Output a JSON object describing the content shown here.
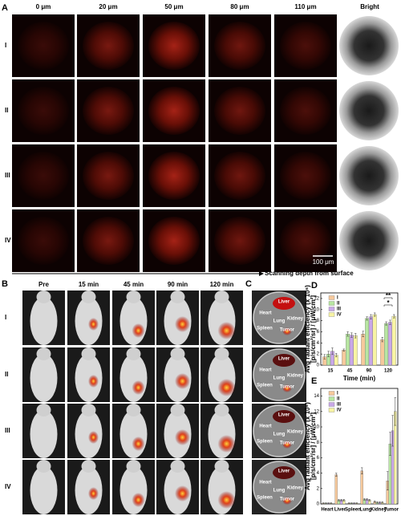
{
  "panel_a": {
    "label": "A",
    "columns": [
      "0 μm",
      "20 μm",
      "50 μm",
      "80 μm",
      "110 μm",
      "Bright"
    ],
    "rows": [
      "I",
      "II",
      "III",
      "IV"
    ],
    "scale_bar": "100 μm",
    "axis_note": "Scanning depth from surface"
  },
  "panel_b": {
    "label": "B",
    "columns": [
      "Pre",
      "15 min",
      "45 min",
      "90 min",
      "120 min"
    ],
    "rows": [
      "I",
      "II",
      "III",
      "IV"
    ]
  },
  "panel_c": {
    "label": "C",
    "dishes": [
      [
        "Liver",
        "Heart",
        "Lung",
        "Kidney",
        "Spleen",
        "Tumor"
      ],
      [
        "Liver",
        "Heart",
        "Lung",
        "Kidney",
        "Spleen",
        "Tumor"
      ],
      [
        "Liver",
        "Heart",
        "Lung",
        "Kidney",
        "Spleen",
        "Tumor"
      ],
      [
        "Liver",
        "Heart",
        "Lung",
        "Kidney",
        "Spleen",
        "Tumor"
      ]
    ]
  },
  "chart_data": [
    {
      "type": "bar",
      "panel_label": "D",
      "y_label": "Avg radiant efficiency (x 10⁶)",
      "y_label_2": "[p/s/cm²/sr] / [μW/cm²]",
      "x_label": "Time (min)",
      "categories": [
        "15",
        "45",
        "90",
        "120"
      ],
      "series": [
        {
          "name": "I",
          "color": "#f6c99c",
          "values": [
            1.5,
            2.7,
            5.6,
            4.6
          ],
          "errors": [
            0.4,
            0.2,
            0.5,
            0.4
          ]
        },
        {
          "name": "II",
          "color": "#b8e6a2",
          "values": [
            2.0,
            5.6,
            8.4,
            7.5
          ],
          "errors": [
            0.5,
            0.4,
            0.3,
            0.3
          ]
        },
        {
          "name": "III",
          "color": "#c9a8e8",
          "values": [
            2.5,
            5.4,
            8.7,
            7.7
          ],
          "errors": [
            0.6,
            0.4,
            0.4,
            0.4
          ]
        },
        {
          "name": "IV",
          "color": "#f8f4a4",
          "values": [
            1.8,
            5.3,
            9.1,
            8.8
          ],
          "errors": [
            0.3,
            0.4,
            0.3,
            0.3
          ]
        }
      ],
      "ylim": [
        0,
        13
      ],
      "yticks": [
        0,
        2,
        4,
        6,
        8,
        10,
        12
      ],
      "legend": "upper left",
      "annotations": [
        "**",
        "*"
      ]
    },
    {
      "type": "bar",
      "panel_label": "E",
      "y_label": "Avg radiant efficiency (x 10⁶)",
      "y_label_2": "[p/s/cm²/sr] / [μW/cm²]",
      "categories": [
        "Heart",
        "Liver",
        "Spleen",
        "Lung",
        "Kidney",
        "Tumor"
      ],
      "series": [
        {
          "name": "I",
          "color": "#f6c99c",
          "values": [
            0.1,
            3.8,
            0.1,
            4.3,
            0.3,
            3.0
          ],
          "errors": [
            0.05,
            0.2,
            0.05,
            0.4,
            0.1,
            1.2
          ]
        },
        {
          "name": "II",
          "color": "#b8e6a2",
          "values": [
            0.1,
            0.5,
            0.1,
            0.6,
            0.2,
            7.8
          ],
          "errors": [
            0.05,
            0.1,
            0.05,
            0.1,
            0.1,
            1.5
          ]
        },
        {
          "name": "III",
          "color": "#c9a8e8",
          "values": [
            0.1,
            0.5,
            0.1,
            0.6,
            0.2,
            9.5
          ],
          "errors": [
            0.05,
            0.1,
            0.05,
            0.1,
            0.1,
            2.0
          ]
        },
        {
          "name": "IV",
          "color": "#f8f4a4",
          "values": [
            0.1,
            0.5,
            0.1,
            0.5,
            0.2,
            12.0
          ],
          "errors": [
            0.05,
            0.1,
            0.05,
            0.1,
            0.1,
            1.8
          ]
        }
      ],
      "ylim": [
        0,
        15
      ],
      "yticks": [
        0,
        2,
        4,
        6,
        8,
        10,
        12,
        14
      ],
      "legend": "upper left"
    }
  ]
}
